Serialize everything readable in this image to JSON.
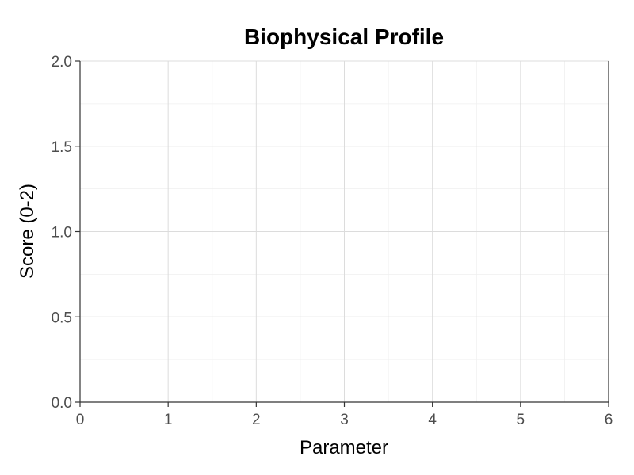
{
  "chart_data": {
    "type": "scatter",
    "title": "Biophysical Profile",
    "xlabel": "Parameter",
    "ylabel": "Score (0-2)",
    "xlim": [
      0,
      6
    ],
    "ylim": [
      0,
      2
    ],
    "x_ticks": [
      "0",
      "1",
      "2",
      "3",
      "4",
      "5",
      "6"
    ],
    "y_ticks": [
      "0.0",
      "0.5",
      "1.0",
      "1.5",
      "2.0"
    ],
    "grid": true,
    "series": []
  }
}
